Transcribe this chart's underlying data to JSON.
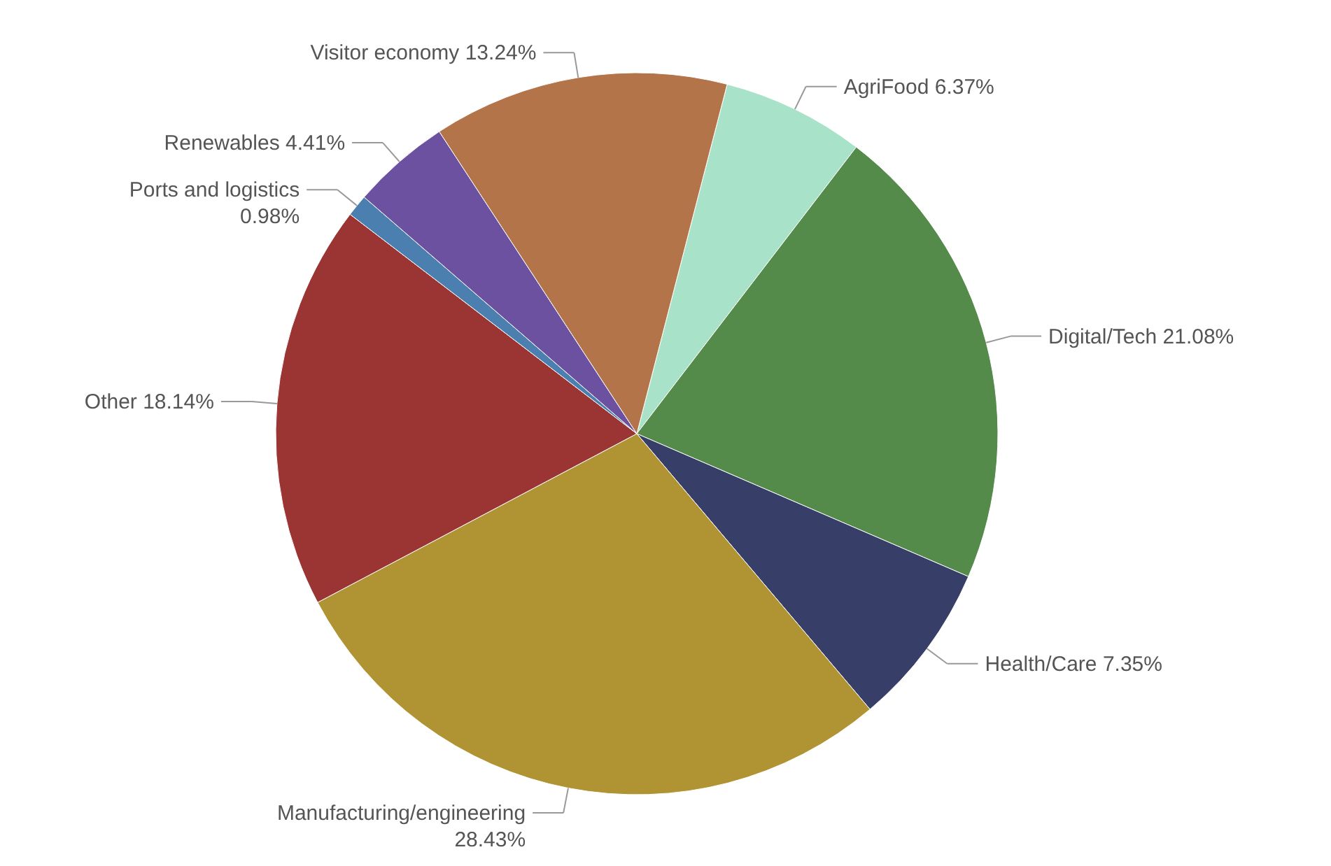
{
  "chart_data": {
    "type": "pie",
    "categories": [
      "AgriFood",
      "Digital/Tech",
      "Health/Care",
      "Manufacturing/engineering",
      "Other",
      "Ports and logistics",
      "Renewables",
      "Visitor economy"
    ],
    "values": [
      6.37,
      21.08,
      7.35,
      28.43,
      18.14,
      0.98,
      4.41,
      13.24
    ],
    "value_labels": [
      "6.37%",
      "21.08%",
      "7.35%",
      "28.43%",
      "18.14%",
      "0.98%",
      "4.41%",
      "13.24%"
    ],
    "colors": [
      "#a8e2c9",
      "#548a4a",
      "#373f68",
      "#b09433",
      "#9b3534",
      "#4a7fb0",
      "#6b51a0",
      "#b3744a"
    ]
  }
}
